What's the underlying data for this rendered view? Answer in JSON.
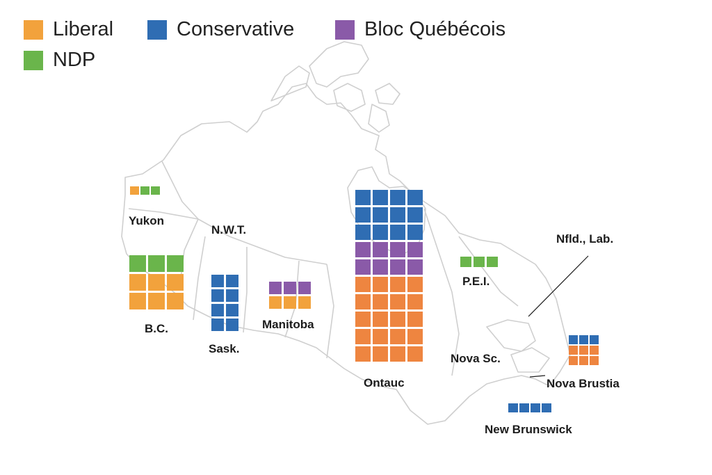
{
  "legend": {
    "items": [
      {
        "label": "Liberal",
        "color": "#f2a23c"
      },
      {
        "label": "Conservative",
        "color": "#2f6db3"
      },
      {
        "label": "Bloc Québécois",
        "color": "#8a5aa8"
      },
      {
        "label": "NDP",
        "color": "#6ab54b"
      }
    ]
  },
  "region_labels": {
    "yukon": "Yukon",
    "nwt": "N.W.T.",
    "bc": "B.C.",
    "sask": "Sask.",
    "manitoba": "Manitoba",
    "ontario": "Ontauc",
    "pei": "P.E.I.",
    "nfld": "Nfld., Lab.",
    "nova_sc": "Nova Sc.",
    "nova_brustia": "Nova Brustia",
    "new_brunswick": "New Brunswick"
  },
  "colors": {
    "liberal": "#f2a23c",
    "liberal_alt": "#ee8540",
    "conservative": "#2f6db3",
    "bloc": "#8a5aa8",
    "ndp": "#6ab54b",
    "map_outline": "#cfcfcf"
  },
  "seat_blocks": [
    {
      "region": "yukon",
      "rows": [
        [
          "liberal",
          "ndp",
          "ndp"
        ]
      ]
    },
    {
      "region": "bc",
      "rows": [
        [
          "ndp",
          "ndp",
          "ndp"
        ],
        [
          "liberal",
          "liberal",
          "liberal"
        ],
        [
          "liberal",
          "liberal",
          "liberal"
        ]
      ]
    },
    {
      "region": "sask",
      "rows": [
        [
          "conservative",
          "conservative"
        ],
        [
          "conservative",
          "conservative"
        ],
        [
          "conservative",
          "conservative"
        ],
        [
          "conservative",
          "conservative"
        ]
      ]
    },
    {
      "region": "manitoba",
      "rows": [
        [
          "bloc",
          "bloc",
          "bloc"
        ],
        [
          "liberal",
          "liberal",
          "liberal"
        ]
      ]
    },
    {
      "region": "ontario",
      "rows": [
        [
          "conservative",
          "conservative",
          "conservative",
          "conservative"
        ],
        [
          "conservative",
          "conservative",
          "conservative",
          "conservative"
        ],
        [
          "conservative",
          "conservative",
          "conservative",
          "conservative"
        ],
        [
          "bloc",
          "bloc",
          "bloc",
          "bloc"
        ],
        [
          "bloc",
          "bloc",
          "bloc",
          "bloc"
        ],
        [
          "liberal_alt",
          "liberal_alt",
          "liberal_alt",
          "liberal_alt"
        ],
        [
          "liberal_alt",
          "liberal_alt",
          "liberal_alt",
          "liberal_alt"
        ],
        [
          "liberal_alt",
          "liberal_alt",
          "liberal_alt",
          "liberal_alt"
        ],
        [
          "liberal_alt",
          "liberal_alt",
          "liberal_alt",
          "liberal_alt"
        ],
        [
          "liberal_alt",
          "liberal_alt",
          "liberal_alt",
          "liberal_alt"
        ]
      ]
    },
    {
      "region": "pei",
      "rows": [
        [
          "ndp",
          "ndp",
          "ndp"
        ]
      ]
    },
    {
      "region": "nova_brustia",
      "rows": [
        [
          "conservative",
          "conservative",
          "conservative"
        ],
        [
          "liberal_alt",
          "liberal_alt",
          "liberal_alt"
        ],
        [
          "liberal_alt",
          "liberal_alt",
          "liberal_alt"
        ]
      ]
    },
    {
      "region": "new_brunswick",
      "rows": [
        [
          "conservative",
          "conservative",
          "conservative",
          "conservative"
        ]
      ]
    }
  ]
}
